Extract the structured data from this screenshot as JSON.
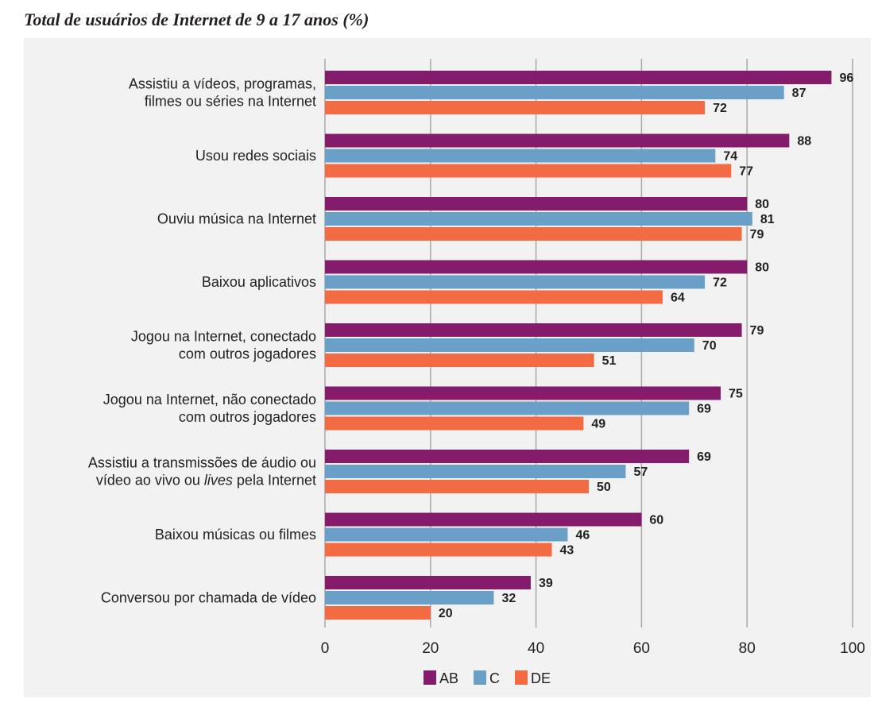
{
  "title": "Total de usuários de Internet de 9 a 17 anos (%)",
  "colors": {
    "AB": "#851c6b",
    "C": "#6a9fc8",
    "DE": "#f26b42",
    "grid": "#a8a8a8",
    "panel": "#f2f2f2"
  },
  "chart_data": {
    "type": "bar",
    "orientation": "horizontal",
    "title": "Total de usuários de Internet de 9 a 17 anos (%)",
    "xlim": [
      0,
      100
    ],
    "xticks": [
      "0",
      "20",
      "40",
      "60",
      "80",
      "100"
    ],
    "grid": true,
    "legend_position": "bottom",
    "categories": [
      [
        "Assistiu a vídeos, programas,",
        "filmes ou séries na Internet"
      ],
      [
        "Usou redes sociais"
      ],
      [
        "Ouviu música na Internet"
      ],
      [
        "Baixou aplicativos"
      ],
      [
        "Jogou na Internet, conectado",
        "com outros jogadores"
      ],
      [
        "Jogou na Internet, não conectado",
        "com outros jogadores"
      ],
      [
        "Assistiu a transmissões de áudio ou",
        "vídeo ao vivo ou lives pela Internet"
      ],
      [
        "Baixou músicas ou filmes"
      ],
      [
        "Conversou por chamada de vídeo"
      ]
    ],
    "series": [
      {
        "name": "AB",
        "values": [
          96,
          88,
          80,
          80,
          79,
          75,
          69,
          60,
          39
        ]
      },
      {
        "name": "C",
        "values": [
          87,
          74,
          81,
          72,
          70,
          69,
          57,
          46,
          32
        ]
      },
      {
        "name": "DE",
        "values": [
          72,
          77,
          79,
          64,
          51,
          49,
          50,
          43,
          20
        ]
      }
    ]
  }
}
